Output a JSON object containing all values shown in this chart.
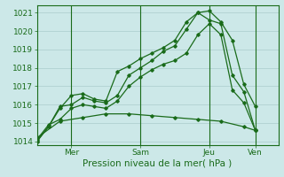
{
  "title": "",
  "xlabel": "Pression niveau de la mer( hPa )",
  "ylabel": "",
  "bg_color": "#cce8e8",
  "grid_color": "#aacccc",
  "line_color": "#1a6b1a",
  "ylim": [
    1013.8,
    1021.4
  ],
  "yticks": [
    1014,
    1015,
    1016,
    1017,
    1018,
    1019,
    1020,
    1021
  ],
  "xtick_labels": [
    "Mer",
    "Sam",
    "Jeu",
    "Ven"
  ],
  "xtick_positions": [
    1.5,
    4.5,
    7.5,
    9.5
  ],
  "xlim": [
    0,
    10.5
  ],
  "lines": [
    {
      "x": [
        0,
        0.5,
        1.0,
        1.5,
        2.0,
        2.5,
        3.0,
        3.5,
        4.0,
        4.5,
        5.0,
        5.5,
        6.0,
        6.5,
        7.0,
        7.5,
        8.0,
        8.5,
        9.0,
        9.5
      ],
      "y": [
        1014.0,
        1014.8,
        1015.8,
        1016.5,
        1016.6,
        1016.3,
        1016.2,
        1017.8,
        1018.1,
        1018.5,
        1018.8,
        1019.1,
        1019.5,
        1020.5,
        1021.0,
        1021.1,
        1020.5,
        1019.5,
        1017.1,
        1015.9
      ]
    },
    {
      "x": [
        0,
        0.5,
        1.0,
        1.5,
        2.0,
        2.5,
        3.0,
        3.5,
        4.0,
        4.5,
        5.0,
        5.5,
        6.0,
        6.5,
        7.0,
        7.5,
        8.0,
        8.5,
        9.0,
        9.5
      ],
      "y": [
        1014.0,
        1014.8,
        1015.9,
        1016.0,
        1016.4,
        1016.2,
        1016.1,
        1016.5,
        1017.6,
        1018.0,
        1018.4,
        1018.9,
        1019.2,
        1020.1,
        1021.0,
        1020.6,
        1020.4,
        1017.6,
        1016.7,
        1014.6
      ]
    },
    {
      "x": [
        0,
        0.5,
        1.0,
        1.5,
        2.0,
        2.5,
        3.0,
        3.5,
        4.0,
        4.5,
        5.0,
        5.5,
        6.0,
        6.5,
        7.0,
        7.5,
        8.0,
        8.5,
        9.0,
        9.5
      ],
      "y": [
        1014.1,
        1014.9,
        1015.2,
        1015.8,
        1016.0,
        1015.9,
        1015.8,
        1016.2,
        1017.0,
        1017.5,
        1017.9,
        1018.2,
        1018.4,
        1018.8,
        1019.8,
        1020.4,
        1019.8,
        1016.8,
        1016.1,
        1014.6
      ]
    },
    {
      "x": [
        0,
        1.0,
        2.0,
        3.0,
        4.0,
        5.0,
        6.0,
        7.0,
        8.0,
        9.0,
        9.5
      ],
      "y": [
        1014.2,
        1015.1,
        1015.3,
        1015.5,
        1015.5,
        1015.4,
        1015.3,
        1015.2,
        1015.1,
        1014.8,
        1014.6
      ]
    }
  ]
}
